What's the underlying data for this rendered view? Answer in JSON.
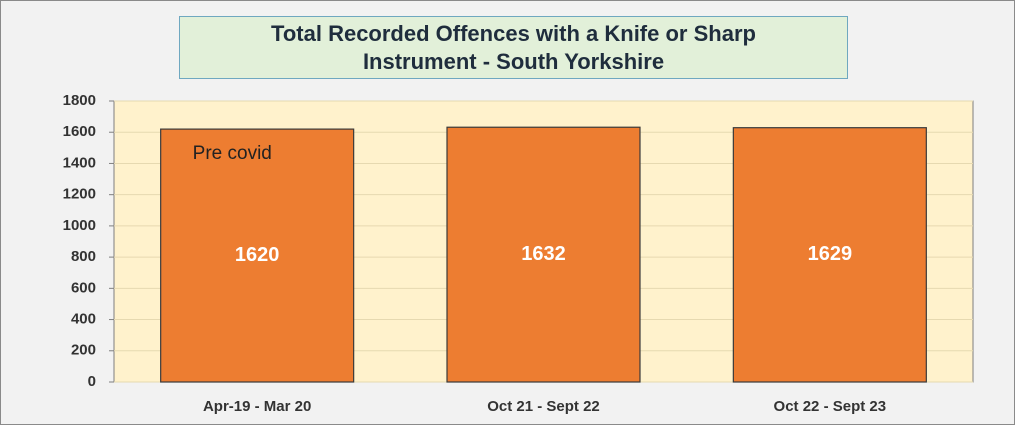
{
  "chart_data": {
    "type": "bar",
    "title": "Total Recorded Offences with a Knife or Sharp Instrument - South Yorkshire",
    "categories": [
      "Apr-19 - Mar 20",
      "Oct 21 - Sept 22",
      "Oct 22 - Sept 23"
    ],
    "values": [
      1620,
      1632,
      1629
    ],
    "color": "#ed7d31",
    "annotation": "Pre covid",
    "ylim": [
      0,
      1800
    ],
    "yticks": [
      0,
      200,
      400,
      600,
      800,
      1000,
      1200,
      1400,
      1600,
      1800
    ],
    "grid": true
  }
}
